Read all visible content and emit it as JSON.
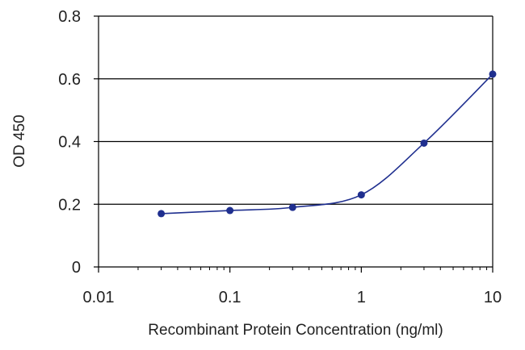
{
  "chart_data": {
    "type": "line",
    "title": "",
    "xlabel": "Recombinant Protein Concentration (ng/ml)",
    "ylabel": "OD 450",
    "x_scale": "log",
    "xlim": [
      0.01,
      10
    ],
    "ylim": [
      0,
      0.8
    ],
    "x_ticks": [
      "0.01",
      "0.1",
      "1",
      "10"
    ],
    "y_ticks": [
      "0",
      "0.2",
      "0.4",
      "0.6",
      "0.8"
    ],
    "gridlines": "horizontal",
    "legend": "none",
    "colors": {
      "series": "#1f2f8f",
      "grid": "#000000",
      "axis": "#000000",
      "text": "#222222"
    },
    "series": [
      {
        "x": [
          0.03,
          0.1,
          0.3,
          1,
          3,
          10
        ],
        "y": [
          0.17,
          0.18,
          0.19,
          0.23,
          0.395,
          0.615
        ]
      }
    ]
  }
}
